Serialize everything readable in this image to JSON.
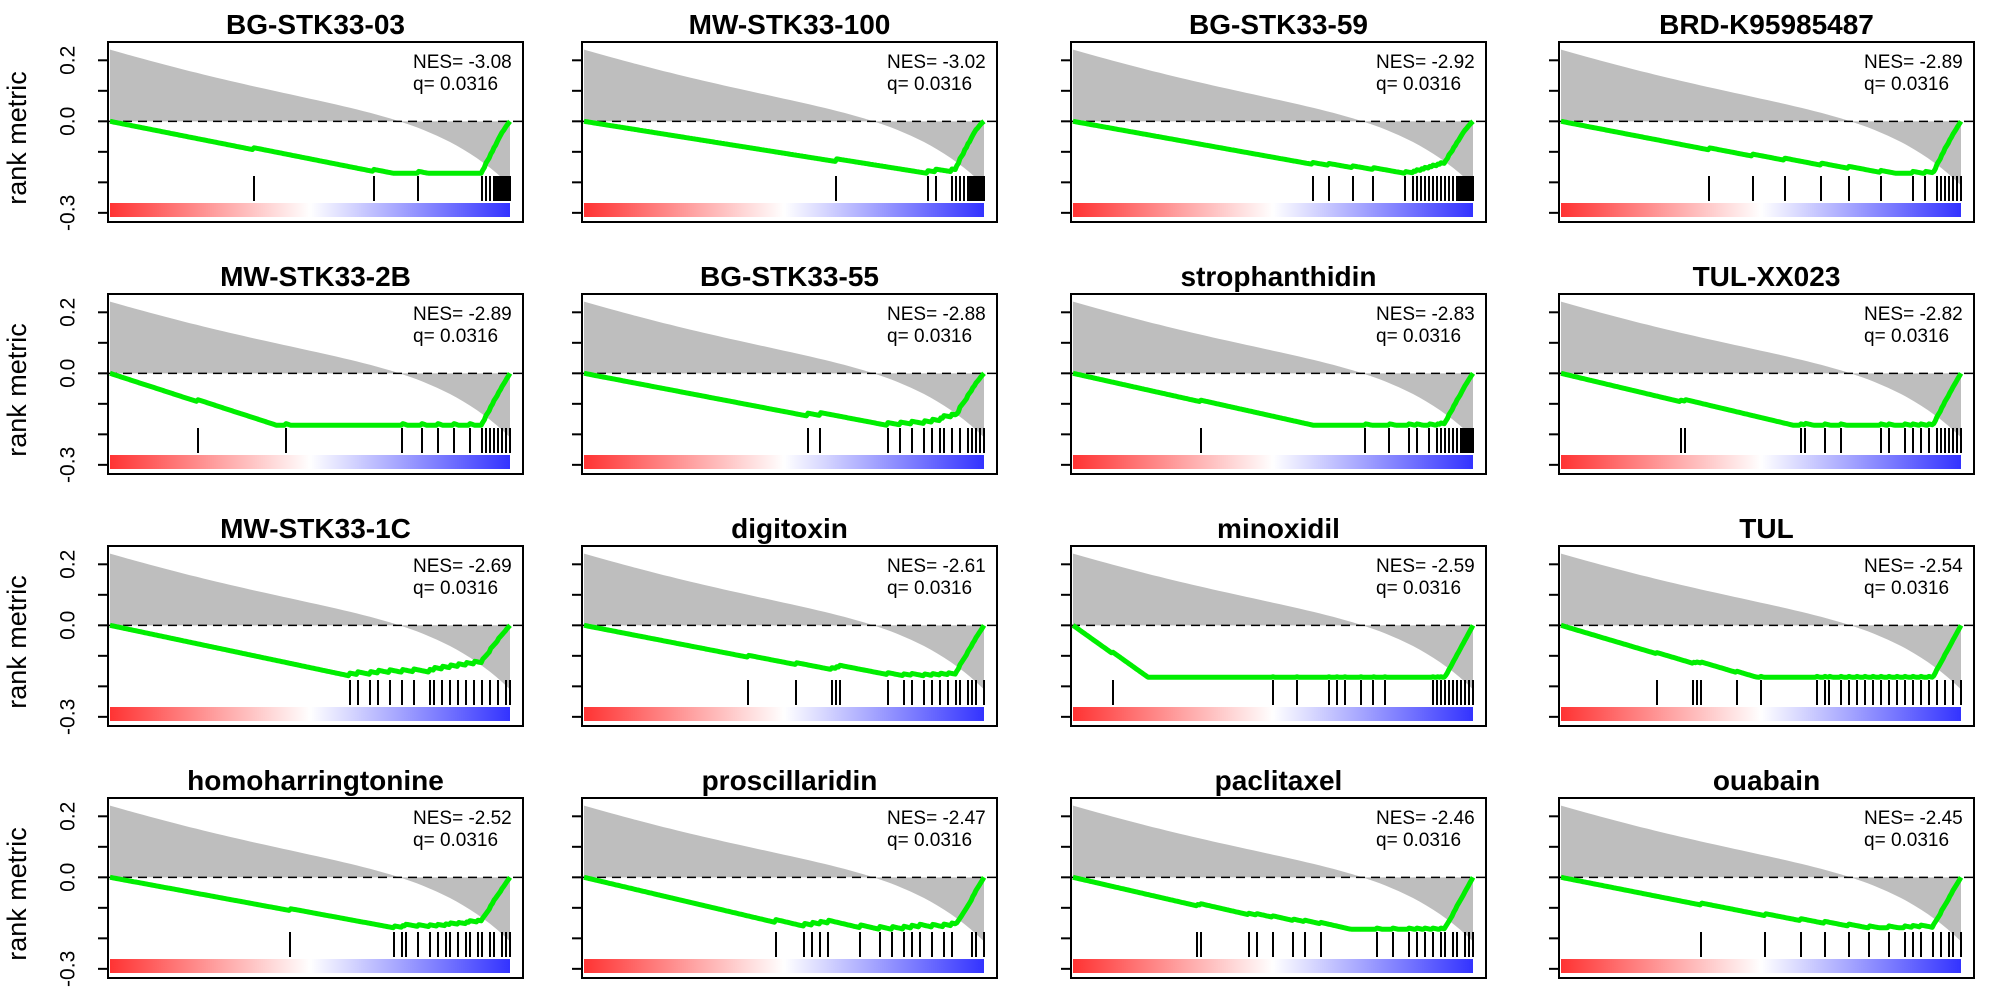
{
  "chart_data": {
    "type": "line",
    "layout": "4x4 grid of GSEA enrichment panels",
    "shared_y_label": "rank metric",
    "y_ticks": [
      0.2,
      0.0,
      -0.3
    ],
    "y_tick_labels": [
      "0.2",
      "0.0",
      "-0.3"
    ],
    "ylim": [
      -0.33,
      0.26
    ],
    "panels": [
      {
        "title": "BG-STK33-03",
        "nes": "NES= -3.08",
        "q": "q= 0.0316",
        "es_min": -0.17,
        "hits": [
          0.36,
          0.66,
          0.77,
          0.93,
          0.94,
          0.95,
          0.96,
          0.965,
          0.97,
          0.975,
          0.98,
          0.985,
          0.99,
          0.995,
          1.0
        ]
      },
      {
        "title": "MW-STK33-100",
        "nes": "NES= -3.02",
        "q": "q= 0.0316",
        "es_min": -0.17,
        "hits": [
          0.63,
          0.86,
          0.88,
          0.92,
          0.93,
          0.94,
          0.95,
          0.96,
          0.965,
          0.97,
          0.975,
          0.98,
          0.985,
          0.99,
          0.995,
          1.0
        ]
      },
      {
        "title": "BG-STK33-59",
        "nes": "NES= -2.92",
        "q": "q= 0.0316",
        "es_min": -0.17,
        "hits": [
          0.6,
          0.64,
          0.7,
          0.75,
          0.83,
          0.85,
          0.86,
          0.87,
          0.88,
          0.89,
          0.9,
          0.91,
          0.92,
          0.93,
          0.94,
          0.95,
          0.96,
          0.965,
          0.97,
          0.975,
          0.98,
          0.985,
          0.99,
          0.995,
          1.0
        ]
      },
      {
        "title": "BRD-K95985487",
        "nes": "NES= -2.89",
        "q": "q= 0.0316",
        "es_min": -0.17,
        "hits": [
          0.37,
          0.48,
          0.56,
          0.65,
          0.72,
          0.8,
          0.88,
          0.91,
          0.94,
          0.95,
          0.96,
          0.97,
          0.98,
          0.99,
          1.0
        ]
      },
      {
        "title": "MW-STK33-2B",
        "nes": "NES= -2.89",
        "q": "q= 0.0316",
        "es_min": -0.17,
        "hits": [
          0.22,
          0.44,
          0.73,
          0.78,
          0.82,
          0.86,
          0.9,
          0.93,
          0.94,
          0.95,
          0.96,
          0.97,
          0.98,
          0.99,
          1.0
        ]
      },
      {
        "title": "BG-STK33-55",
        "nes": "NES= -2.88",
        "q": "q= 0.0316",
        "es_min": -0.17,
        "hits": [
          0.56,
          0.59,
          0.76,
          0.79,
          0.82,
          0.85,
          0.87,
          0.89,
          0.9,
          0.92,
          0.94,
          0.96,
          0.97,
          0.98,
          0.99,
          1.0
        ]
      },
      {
        "title": "strophanthidin",
        "nes": "NES= -2.83",
        "q": "q= 0.0316",
        "es_min": -0.17,
        "hits": [
          0.32,
          0.73,
          0.79,
          0.84,
          0.86,
          0.89,
          0.91,
          0.92,
          0.93,
          0.94,
          0.95,
          0.96,
          0.97,
          0.975,
          0.98,
          0.985,
          0.99,
          0.995,
          1.0
        ]
      },
      {
        "title": "TUL-XX023",
        "nes": "NES= -2.82",
        "q": "q= 0.0316",
        "es_min": -0.17,
        "hits": [
          0.3,
          0.31,
          0.6,
          0.61,
          0.66,
          0.7,
          0.8,
          0.82,
          0.86,
          0.88,
          0.9,
          0.92,
          0.94,
          0.95,
          0.96,
          0.97,
          0.98,
          0.99,
          1.0
        ]
      },
      {
        "title": "MW-STK33-1C",
        "nes": "NES= -2.69",
        "q": "q= 0.0316",
        "es_min": -0.165,
        "hits": [
          0.6,
          0.62,
          0.65,
          0.67,
          0.7,
          0.73,
          0.76,
          0.8,
          0.81,
          0.83,
          0.85,
          0.87,
          0.89,
          0.91,
          0.93,
          0.95,
          0.97,
          0.99,
          1.0
        ]
      },
      {
        "title": "digitoxin",
        "nes": "NES= -2.61",
        "q": "q= 0.0316",
        "es_min": -0.165,
        "hits": [
          0.41,
          0.53,
          0.62,
          0.63,
          0.64,
          0.76,
          0.8,
          0.82,
          0.85,
          0.87,
          0.89,
          0.91,
          0.93,
          0.94,
          0.96,
          0.97,
          0.98,
          1.0
        ]
      },
      {
        "title": "minoxidil",
        "nes": "NES= -2.59",
        "q": "q= 0.0316",
        "es_min": -0.17,
        "hits": [
          0.1,
          0.5,
          0.56,
          0.64,
          0.66,
          0.68,
          0.72,
          0.75,
          0.78,
          0.9,
          0.91,
          0.92,
          0.93,
          0.94,
          0.95,
          0.96,
          0.97,
          0.98,
          0.99,
          1.0
        ]
      },
      {
        "title": "TUL",
        "nes": "NES= -2.54",
        "q": "q= 0.0316",
        "es_min": -0.17,
        "hits": [
          0.24,
          0.33,
          0.34,
          0.35,
          0.44,
          0.5,
          0.64,
          0.66,
          0.67,
          0.7,
          0.72,
          0.74,
          0.76,
          0.78,
          0.8,
          0.82,
          0.84,
          0.86,
          0.88,
          0.9,
          0.92,
          0.94,
          0.96,
          0.98,
          1.0
        ]
      },
      {
        "title": "homoharringtonine",
        "nes": "NES= -2.52",
        "q": "q= 0.0316",
        "es_min": -0.165,
        "hits": [
          0.45,
          0.71,
          0.73,
          0.74,
          0.77,
          0.8,
          0.82,
          0.84,
          0.85,
          0.87,
          0.89,
          0.9,
          0.92,
          0.93,
          0.95,
          0.96,
          0.98,
          0.99,
          1.0
        ]
      },
      {
        "title": "proscillaridin",
        "nes": "NES= -2.47",
        "q": "q= 0.0316",
        "es_min": -0.17,
        "hits": [
          0.48,
          0.55,
          0.57,
          0.59,
          0.61,
          0.69,
          0.74,
          0.77,
          0.8,
          0.82,
          0.84,
          0.87,
          0.9,
          0.92,
          0.97,
          0.98,
          1.0
        ]
      },
      {
        "title": "paclitaxel",
        "nes": "NES= -2.46",
        "q": "q= 0.0316",
        "es_min": -0.17,
        "hits": [
          0.31,
          0.32,
          0.44,
          0.46,
          0.5,
          0.55,
          0.58,
          0.62,
          0.76,
          0.8,
          0.84,
          0.86,
          0.88,
          0.9,
          0.92,
          0.93,
          0.95,
          0.96,
          0.98,
          0.99,
          1.0
        ]
      },
      {
        "title": "ouabain",
        "nes": "NES= -2.45",
        "q": "q= 0.0316",
        "es_min": -0.165,
        "hits": [
          0.35,
          0.51,
          0.6,
          0.66,
          0.72,
          0.77,
          0.82,
          0.86,
          0.88,
          0.9,
          0.93,
          0.95,
          0.97,
          0.98,
          1.0
        ]
      }
    ],
    "series": [
      {
        "name": "",
        "color": "#00ee00"
      },
      {
        "name": "",
        "color": "#bebebe"
      }
    ],
    "colors": {
      "es_curve": "#00ee00",
      "rank_fill": "#bebebe",
      "hit_bar": "#000000",
      "gradient_low": "#ff3333",
      "gradient_mid": "#ffffff",
      "gradient_high": "#3333ff"
    }
  }
}
